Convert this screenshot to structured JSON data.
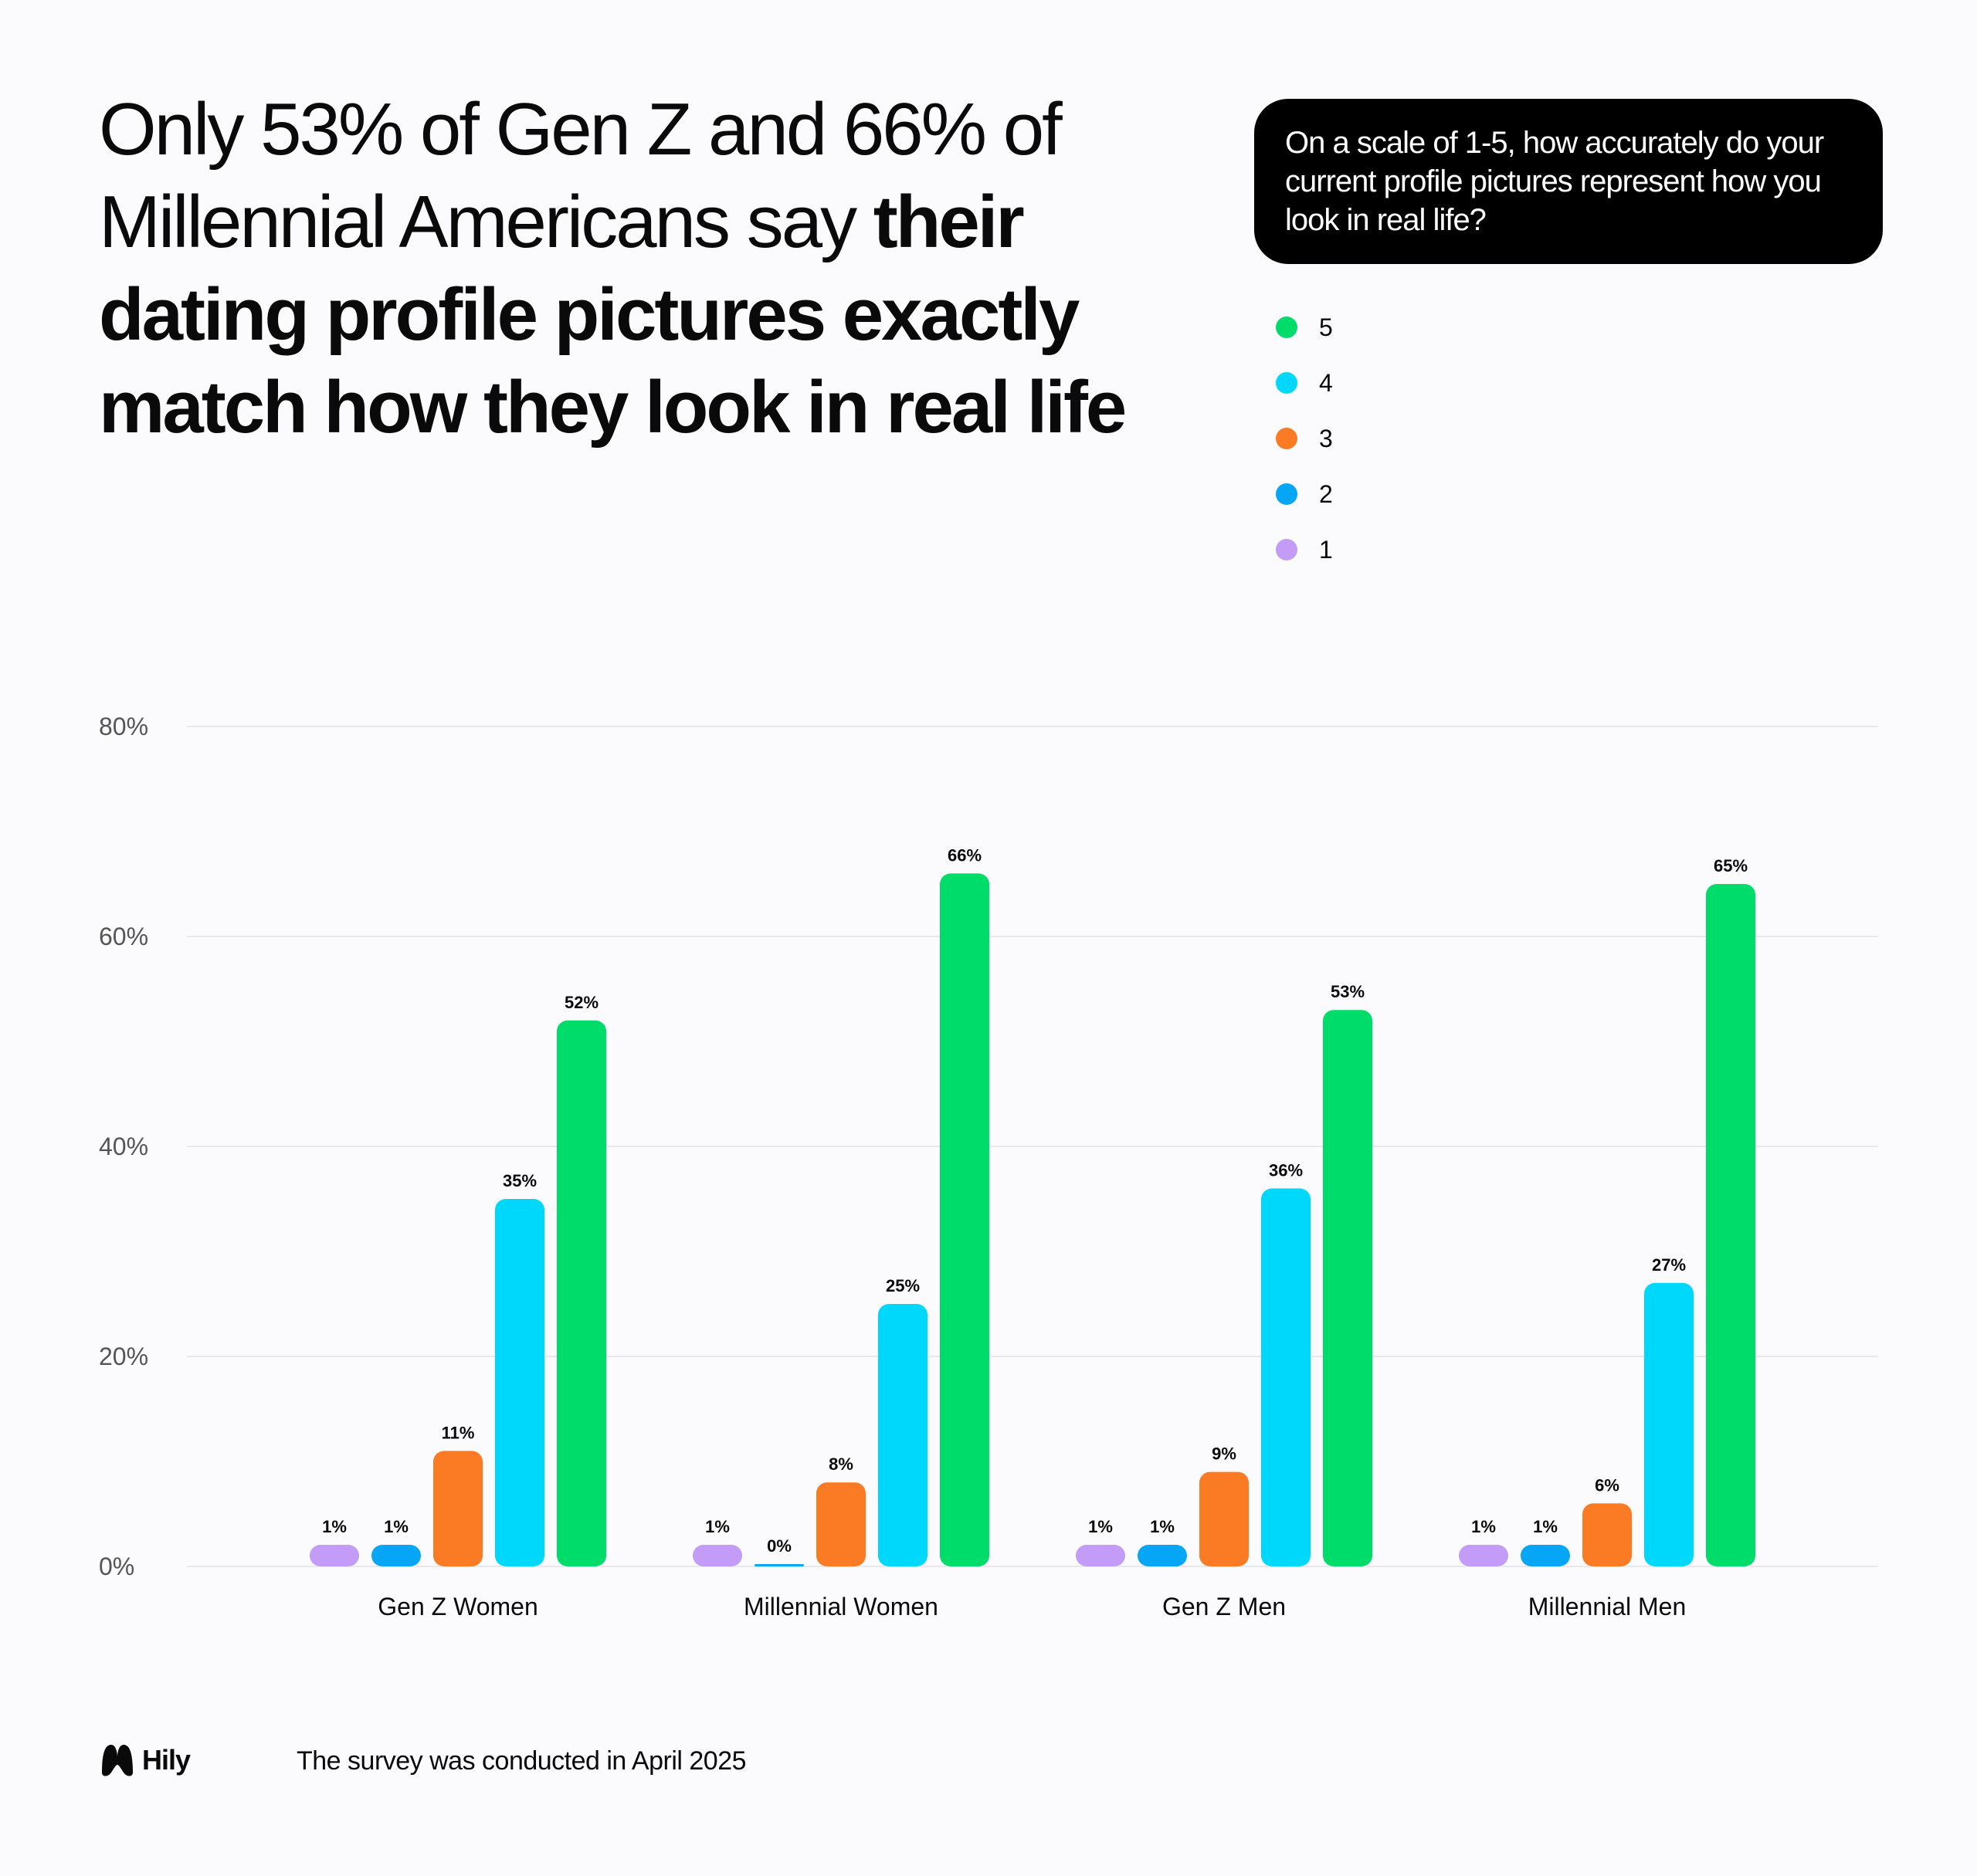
{
  "headline": {
    "regular_part": "Only 53% of Gen Z and 66% of Millennial Americans say ",
    "bold_part": "their dating profile pictures exactly match how they look in real life"
  },
  "question": "On a scale of 1-5, how accurately do your current profile pictures represent how you look in real life?",
  "colors": {
    "rating_5": "#00dc6a",
    "rating_4": "#00d8fb",
    "rating_3": "#fb7a24",
    "rating_2": "#05a6f5",
    "rating_1": "#c39cf8",
    "gridline": "#e8e8ee",
    "axis_text": "#555555"
  },
  "legend": [
    {
      "label": "5",
      "color": "#00dc6a"
    },
    {
      "label": "4",
      "color": "#00d8fb"
    },
    {
      "label": "3",
      "color": "#fb7a24"
    },
    {
      "label": "2",
      "color": "#05a6f5"
    },
    {
      "label": "1",
      "color": "#c39cf8"
    }
  ],
  "chart_data": {
    "type": "bar",
    "categories": [
      "Gen Z Women",
      "Millennial Women",
      "Gen Z Men",
      "Millennial Men"
    ],
    "series": [
      {
        "name": "1",
        "color": "#c39cf8",
        "values": [
          1,
          1,
          1,
          1
        ],
        "labels": [
          "1%",
          "1%",
          "1%",
          "1%"
        ]
      },
      {
        "name": "2",
        "color": "#05a6f5",
        "values": [
          1,
          0,
          1,
          1
        ],
        "labels": [
          "1%",
          "0%",
          "1%",
          "1%"
        ]
      },
      {
        "name": "3",
        "color": "#fb7a24",
        "values": [
          11,
          8,
          9,
          6
        ],
        "labels": [
          "11%",
          "8%",
          "9%",
          "6%"
        ]
      },
      {
        "name": "4",
        "color": "#00d8fb",
        "values": [
          35,
          25,
          36,
          27
        ],
        "labels": [
          "35%",
          "25%",
          "36%",
          "27%"
        ]
      },
      {
        "name": "5",
        "color": "#00dc6a",
        "values": [
          52,
          66,
          53,
          65
        ],
        "labels": [
          "52%",
          "66%",
          "53%",
          "65%"
        ]
      }
    ],
    "y_ticks": [
      "0%",
      "20%",
      "40%",
      "60%",
      "80%"
    ],
    "ylim": [
      0,
      80
    ],
    "grid": true,
    "legend_position": "top-right"
  },
  "footer": {
    "brand": "Hily",
    "note": "The survey was conducted in April 2025"
  }
}
